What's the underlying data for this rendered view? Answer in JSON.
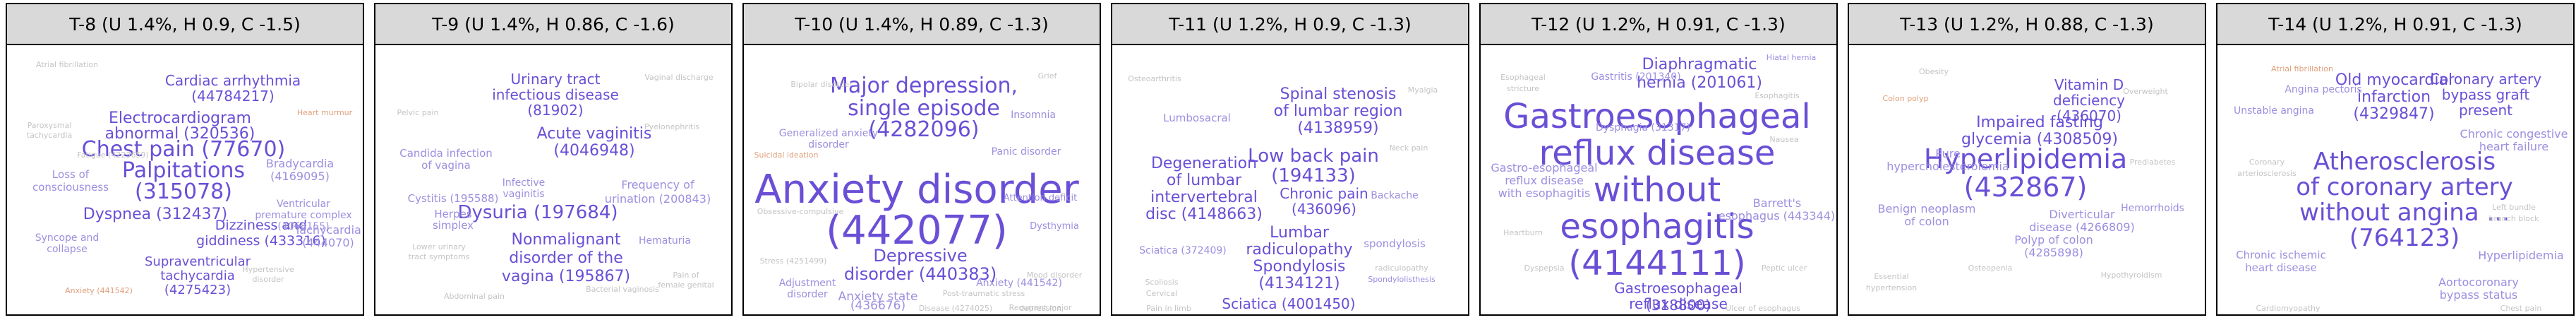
{
  "colors": {
    "primary": "#6a4fd6",
    "secondary": "#9b8fe0",
    "muted": "#c4c4c4",
    "accent": "#e0a07a"
  },
  "panels": [
    {
      "title": "T-8 (U 1.4%, H 0.9, C -1.5)",
      "terms": [
        {
          "text": "Chest pain (77670)",
          "color": "primary"
        },
        {
          "text": "Palpitations",
          "color": "primary"
        },
        {
          "text": "(315078)",
          "color": "primary"
        },
        {
          "text": "Cardiac arrhythmia",
          "color": "primary"
        },
        {
          "text": "(44784217)",
          "color": "primary"
        },
        {
          "text": "Electrocardiogram",
          "color": "primary"
        },
        {
          "text": "abnormal (320536)",
          "color": "primary"
        },
        {
          "text": "Dyspnea (312437)",
          "color": "primary"
        },
        {
          "text": "Dizziness and",
          "color": "primary"
        },
        {
          "text": "giddiness (433316)",
          "color": "primary"
        },
        {
          "text": "Supraventricular",
          "color": "primary"
        },
        {
          "text": "tachycardia",
          "color": "primary"
        },
        {
          "text": "(4275423)",
          "color": "primary"
        },
        {
          "text": "Bradycardia",
          "color": "secondary"
        },
        {
          "text": "(4169095)",
          "color": "secondary"
        },
        {
          "text": "Tachycardia",
          "color": "secondary"
        },
        {
          "text": "(444070)",
          "color": "secondary"
        },
        {
          "text": "Loss of",
          "color": "secondary"
        },
        {
          "text": "consciousness",
          "color": "secondary"
        },
        {
          "text": "Ventricular",
          "color": "secondary"
        },
        {
          "text": "premature complex",
          "color": "secondary"
        },
        {
          "text": "(4068155)",
          "color": "secondary"
        },
        {
          "text": "Syncope and",
          "color": "secondary"
        },
        {
          "text": "collapse",
          "color": "secondary"
        },
        {
          "text": "Atrial fibrillation",
          "color": "muted"
        },
        {
          "text": "Paroxysmal",
          "color": "muted"
        },
        {
          "text": "tachycardia",
          "color": "muted"
        },
        {
          "text": "Fatigue (4223659)",
          "color": "muted"
        },
        {
          "text": "Hypertensive",
          "color": "muted"
        },
        {
          "text": "disorder",
          "color": "muted"
        },
        {
          "text": "Heart murmur",
          "color": "accent"
        },
        {
          "text": "Anxiety (441542)",
          "color": "accent"
        }
      ]
    },
    {
      "title": "T-9 (U 1.4%, H 0.86, C -1.6)",
      "terms": [
        {
          "text": "Dysuria (197684)",
          "color": "primary"
        },
        {
          "text": "Acute vaginitis",
          "color": "primary"
        },
        {
          "text": "(4046948)",
          "color": "primary"
        },
        {
          "text": "Urinary tract",
          "color": "primary"
        },
        {
          "text": "infectious disease",
          "color": "primary"
        },
        {
          "text": "(81902)",
          "color": "primary"
        },
        {
          "text": "Nonmalignant",
          "color": "primary"
        },
        {
          "text": "disorder of the",
          "color": "primary"
        },
        {
          "text": "vagina (195867)",
          "color": "primary"
        },
        {
          "text": "Candida infection",
          "color": "secondary"
        },
        {
          "text": "of vagina",
          "color": "secondary"
        },
        {
          "text": "Cystitis (195588)",
          "color": "secondary"
        },
        {
          "text": "Frequency of",
          "color": "secondary"
        },
        {
          "text": "urination (200843)",
          "color": "secondary"
        },
        {
          "text": "Infective",
          "color": "secondary"
        },
        {
          "text": "vaginitis",
          "color": "secondary"
        },
        {
          "text": "Hematuria",
          "color": "secondary"
        },
        {
          "text": "Vaginal discharge",
          "color": "muted"
        },
        {
          "text": "Pelvic pain",
          "color": "muted"
        },
        {
          "text": "Lower urinary",
          "color": "muted"
        },
        {
          "text": "tract symptoms",
          "color": "muted"
        },
        {
          "text": "Pyelonephritis",
          "color": "muted"
        },
        {
          "text": "Bacterial vaginosis",
          "color": "muted"
        },
        {
          "text": "Herpes",
          "color": "secondary"
        },
        {
          "text": "simplex",
          "color": "secondary"
        },
        {
          "text": "Pain of",
          "color": "muted"
        },
        {
          "text": "female genital",
          "color": "muted"
        },
        {
          "text": "Abdominal pain",
          "color": "muted"
        }
      ]
    },
    {
      "title": "T-10 (U 1.4%, H 0.89, C -1.3)",
      "terms": [
        {
          "text": "Anxiety disorder",
          "color": "primary"
        },
        {
          "text": "(442077)",
          "color": "primary"
        },
        {
          "text": "Major depression,",
          "color": "primary"
        },
        {
          "text": "single episode",
          "color": "primary"
        },
        {
          "text": "(4282096)",
          "color": "primary"
        },
        {
          "text": "Depressive",
          "color": "primary"
        },
        {
          "text": "disorder (440383)",
          "color": "primary"
        },
        {
          "text": "Generalized anxiety",
          "color": "secondary"
        },
        {
          "text": "disorder",
          "color": "secondary"
        },
        {
          "text": "Anxiety state",
          "color": "secondary"
        },
        {
          "text": "(436676)",
          "color": "secondary"
        },
        {
          "text": "Insomnia",
          "color": "secondary"
        },
        {
          "text": "Panic disorder",
          "color": "secondary"
        },
        {
          "text": "Anxiety (441542)",
          "color": "secondary"
        },
        {
          "text": "Adjustment",
          "color": "secondary"
        },
        {
          "text": "disorder",
          "color": "secondary"
        },
        {
          "text": "Attention deficit",
          "color": "secondary"
        },
        {
          "text": "Dysthymia",
          "color": "secondary"
        },
        {
          "text": "Bipolar disorder",
          "color": "muted"
        },
        {
          "text": "Stress (4251499)",
          "color": "muted"
        },
        {
          "text": "Grief",
          "color": "muted"
        },
        {
          "text": "Recurrent major",
          "color": "muted"
        },
        {
          "text": "depression",
          "color": "muted"
        },
        {
          "text": "Suicidal ideation",
          "color": "accent"
        },
        {
          "text": "Obsessive-compulsive",
          "color": "muted"
        },
        {
          "text": "Post-traumatic stress",
          "color": "muted"
        },
        {
          "text": "Disease (4274025)",
          "color": "muted"
        },
        {
          "text": "Mood disorder",
          "color": "muted"
        }
      ]
    },
    {
      "title": "T-11 (U 1.2%, H 0.9, C -1.3)",
      "terms": [
        {
          "text": "Low back pain",
          "color": "primary"
        },
        {
          "text": "(194133)",
          "color": "primary"
        },
        {
          "text": "Spinal stenosis",
          "color": "primary"
        },
        {
          "text": "of lumbar region",
          "color": "primary"
        },
        {
          "text": "(4138959)",
          "color": "primary"
        },
        {
          "text": "Degeneration",
          "color": "primary"
        },
        {
          "text": "of lumbar",
          "color": "primary"
        },
        {
          "text": "intervertebral",
          "color": "primary"
        },
        {
          "text": "disc (4148663)",
          "color": "primary"
        },
        {
          "text": "Chronic pain",
          "color": "primary"
        },
        {
          "text": "(436096)",
          "color": "primary"
        },
        {
          "text": "Lumbar",
          "color": "primary"
        },
        {
          "text": "radiculopathy",
          "color": "primary"
        },
        {
          "text": "Spondylosis",
          "color": "primary"
        },
        {
          "text": "(4134121)",
          "color": "primary"
        },
        {
          "text": "Sciatica (4001450)",
          "color": "primary"
        },
        {
          "text": "Lumbosacral",
          "color": "secondary"
        },
        {
          "text": "spondylosis",
          "color": "secondary"
        },
        {
          "text": "Sciatica (372409)",
          "color": "secondary"
        },
        {
          "text": "Backache",
          "color": "secondary"
        },
        {
          "text": "Osteoarthritis",
          "color": "muted"
        },
        {
          "text": "Myalgia",
          "color": "muted"
        },
        {
          "text": "Neck pain",
          "color": "muted"
        },
        {
          "text": "Scoliosis",
          "color": "muted"
        },
        {
          "text": "Cervical",
          "color": "muted"
        },
        {
          "text": "radiculopathy",
          "color": "muted"
        },
        {
          "text": "Spondylolisthesis",
          "color": "secondary"
        },
        {
          "text": "Pain in limb",
          "color": "muted"
        }
      ]
    },
    {
      "title": "T-12 (U 1.2%, H 0.91, C -1.3)",
      "terms": [
        {
          "text": "Gastroesophageal",
          "color": "primary"
        },
        {
          "text": "reflux disease",
          "color": "primary"
        },
        {
          "text": "without",
          "color": "primary"
        },
        {
          "text": "esophagitis",
          "color": "primary"
        },
        {
          "text": "(4144111)",
          "color": "primary"
        },
        {
          "text": "Diaphragmatic",
          "color": "primary"
        },
        {
          "text": "hernia (201061)",
          "color": "primary"
        },
        {
          "text": "Gastroesophageal",
          "color": "primary"
        },
        {
          "text": "reflux disease",
          "color": "primary"
        },
        {
          "text": "(318800)",
          "color": "primary"
        },
        {
          "text": "Gastro-esophageal",
          "color": "secondary"
        },
        {
          "text": "reflux disease",
          "color": "secondary"
        },
        {
          "text": "with esophagitis",
          "color": "secondary"
        },
        {
          "text": "Barrett's",
          "color": "secondary"
        },
        {
          "text": "esophagus (443344)",
          "color": "secondary"
        },
        {
          "text": "Gastritis (201340)",
          "color": "secondary"
        },
        {
          "text": "Dysphagia (31317)",
          "color": "secondary"
        },
        {
          "text": "Esophagitis",
          "color": "muted"
        },
        {
          "text": "Heartburn",
          "color": "muted"
        },
        {
          "text": "Peptic ulcer",
          "color": "muted"
        },
        {
          "text": "Dyspepsia",
          "color": "muted"
        },
        {
          "text": "Nausea",
          "color": "muted"
        },
        {
          "text": "Esophageal",
          "color": "muted"
        },
        {
          "text": "stricture",
          "color": "muted"
        },
        {
          "text": "Ulcer of esophagus",
          "color": "muted"
        },
        {
          "text": "Hiatal hernia",
          "color": "secondary"
        }
      ]
    },
    {
      "title": "T-13 (U 1.2%, H 0.88, C -1.3)",
      "terms": [
        {
          "text": "Hyperlipidemia",
          "color": "primary"
        },
        {
          "text": "(432867)",
          "color": "primary"
        },
        {
          "text": "Impaired fasting",
          "color": "primary"
        },
        {
          "text": "glycemia (4308509)",
          "color": "primary"
        },
        {
          "text": "Vitamin D",
          "color": "primary"
        },
        {
          "text": "deficiency",
          "color": "primary"
        },
        {
          "text": "(436070)",
          "color": "primary"
        },
        {
          "text": "Pure",
          "color": "secondary"
        },
        {
          "text": "hypercholesterolemia",
          "color": "secondary"
        },
        {
          "text": "Benign neoplasm",
          "color": "secondary"
        },
        {
          "text": "of colon",
          "color": "secondary"
        },
        {
          "text": "Diverticular",
          "color": "secondary"
        },
        {
          "text": "disease (4266809)",
          "color": "secondary"
        },
        {
          "text": "Polyp of colon",
          "color": "secondary"
        },
        {
          "text": "(4285898)",
          "color": "secondary"
        },
        {
          "text": "Essential",
          "color": "muted"
        },
        {
          "text": "hypertension",
          "color": "muted"
        },
        {
          "text": "Obesity",
          "color": "muted"
        },
        {
          "text": "Prediabetes",
          "color": "muted"
        },
        {
          "text": "Hemorrhoids",
          "color": "secondary"
        },
        {
          "text": "Osteopenia",
          "color": "muted"
        },
        {
          "text": "Hypothyroidism",
          "color": "muted"
        },
        {
          "text": "Overweight",
          "color": "muted"
        },
        {
          "text": "Colon polyp",
          "color": "accent"
        }
      ]
    },
    {
      "title": "T-14 (U 1.2%, H 0.91, C -1.3)",
      "terms": [
        {
          "text": "Atherosclerosis",
          "color": "primary"
        },
        {
          "text": "of coronary artery",
          "color": "primary"
        },
        {
          "text": "without angina ...",
          "color": "primary"
        },
        {
          "text": "(764123)",
          "color": "primary"
        },
        {
          "text": "Old myocardial",
          "color": "primary"
        },
        {
          "text": "infarction",
          "color": "primary"
        },
        {
          "text": "(4329847)",
          "color": "primary"
        },
        {
          "text": "Coronary artery",
          "color": "primary"
        },
        {
          "text": "bypass graft",
          "color": "primary"
        },
        {
          "text": "present",
          "color": "primary"
        },
        {
          "text": "Chronic congestive",
          "color": "secondary"
        },
        {
          "text": "heart failure",
          "color": "secondary"
        },
        {
          "text": "Unstable angina",
          "color": "secondary"
        },
        {
          "text": "Angina pectoris",
          "color": "secondary"
        },
        {
          "text": "Chronic ischemic",
          "color": "secondary"
        },
        {
          "text": "heart disease",
          "color": "secondary"
        },
        {
          "text": "Hyperlipidemia",
          "color": "secondary"
        },
        {
          "text": "Aortocoronary",
          "color": "secondary"
        },
        {
          "text": "bypass status",
          "color": "secondary"
        },
        {
          "text": "Coronary",
          "color": "muted"
        },
        {
          "text": "arteriosclerosis",
          "color": "muted"
        },
        {
          "text": "Chest pain",
          "color": "muted"
        },
        {
          "text": "Cardiomyopathy",
          "color": "muted"
        },
        {
          "text": "Left bundle",
          "color": "muted"
        },
        {
          "text": "branch block",
          "color": "muted"
        },
        {
          "text": "Atrial fibrillation",
          "color": "accent"
        }
      ]
    }
  ]
}
